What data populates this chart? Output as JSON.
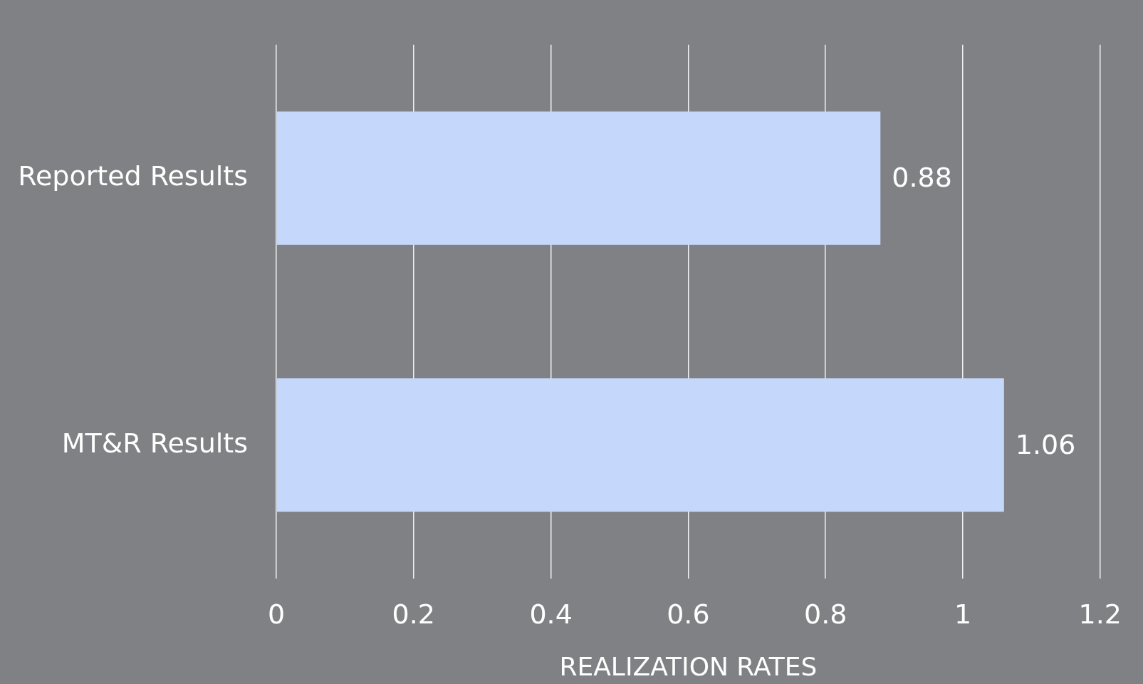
{
  "chart_data": {
    "type": "bar",
    "orientation": "horizontal",
    "xlabel": "REALIZATION RATES",
    "categories": [
      "Reported Results",
      "MT&R Results"
    ],
    "values": [
      0.88,
      1.06
    ],
    "color": "#c5d8fb",
    "xlim": [
      0,
      1.2
    ],
    "xticks": [
      0,
      0.2,
      0.4,
      0.6,
      0.8,
      1,
      1.2
    ],
    "grid": "x",
    "data_labels": true,
    "legend": false
  }
}
